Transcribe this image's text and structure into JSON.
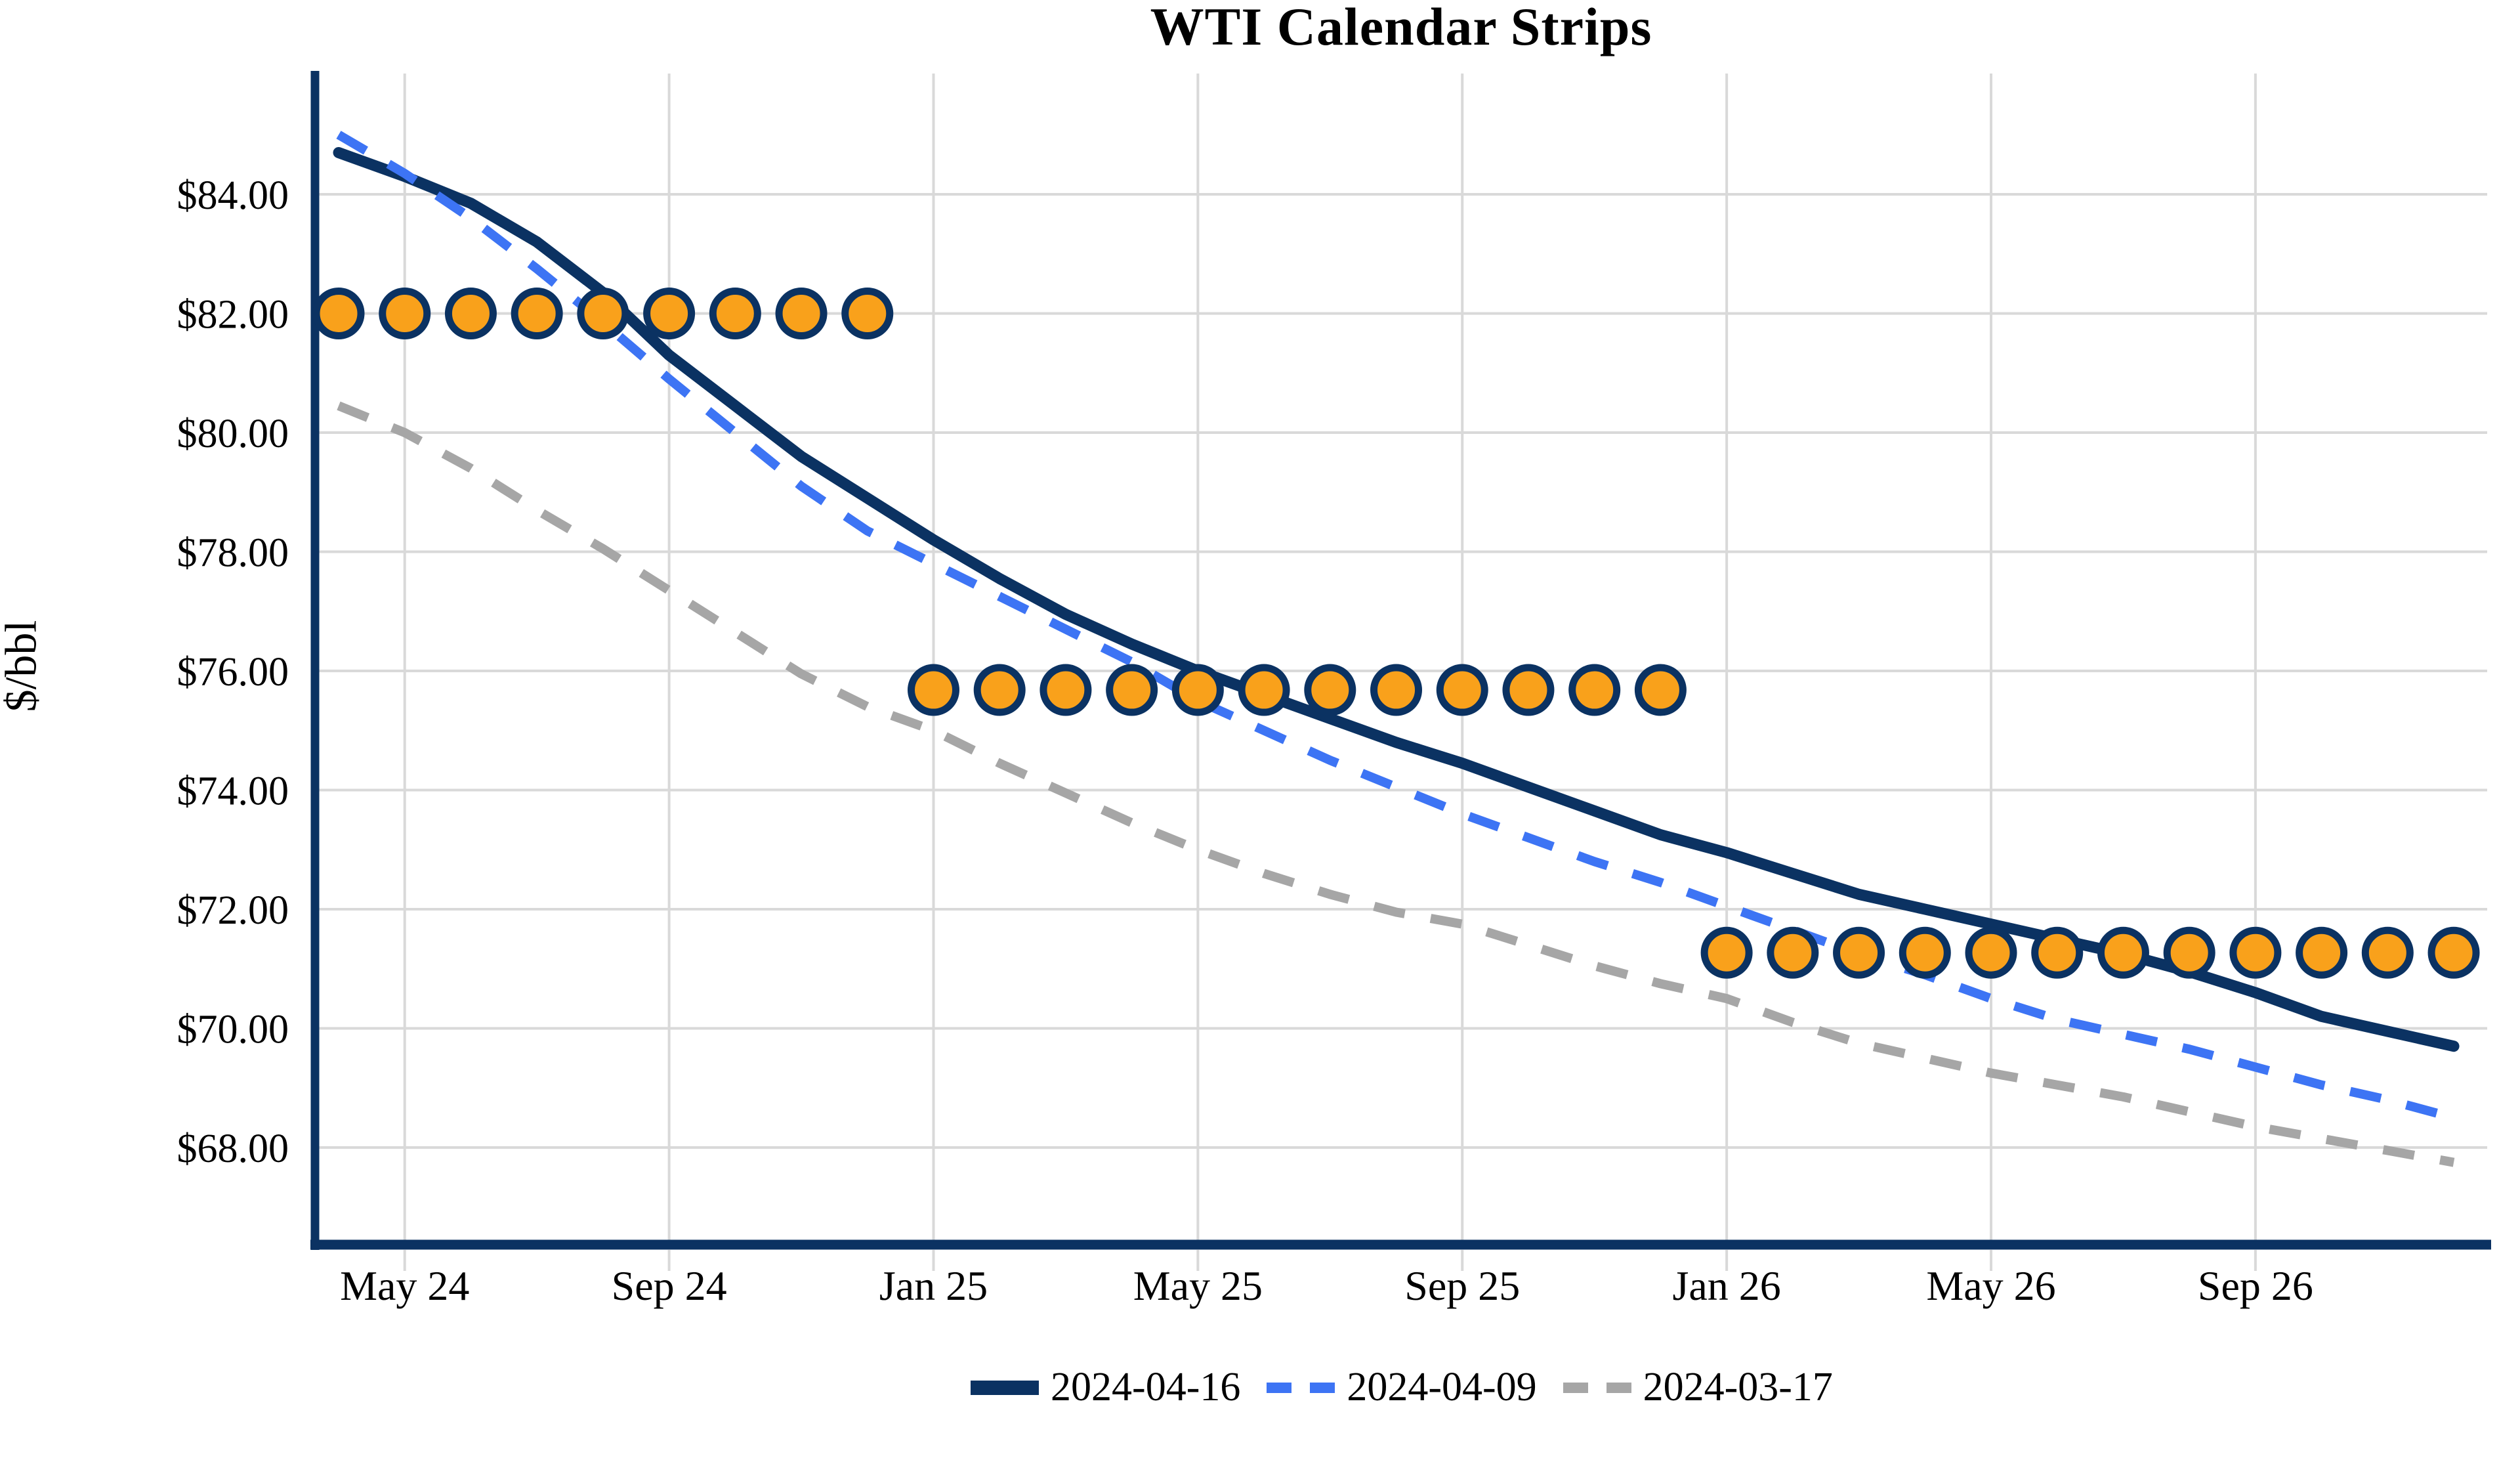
{
  "chart_data": {
    "type": "line",
    "title": "WTI Calendar Strips",
    "xlabel": "",
    "ylabel": "$/bbl",
    "grid": true,
    "legend_position": "bottom",
    "ylim": [
      66.4,
      86.0
    ],
    "background_color": "#ffffff",
    "gridline_color": "#d9d9d9",
    "axis_color": "#0B3262",
    "x": [
      "Apr 24",
      "May 24",
      "Jun 24",
      "Jul 24",
      "Aug 24",
      "Sep 24",
      "Oct 24",
      "Nov 24",
      "Dec 24",
      "Jan 25",
      "Feb 25",
      "Mar 25",
      "Apr 25",
      "May 25",
      "Jun 25",
      "Jul 25",
      "Aug 25",
      "Sep 25",
      "Oct 25",
      "Nov 25",
      "Dec 25",
      "Jan 26",
      "Feb 26",
      "Mar 26",
      "Apr 26",
      "May 26",
      "Jun 26",
      "Jul 26",
      "Aug 26",
      "Sep 26",
      "Oct 26",
      "Nov 26",
      "Dec 26"
    ],
    "x_ticks": [
      {
        "month_index": 1,
        "label": "May 24"
      },
      {
        "month_index": 5,
        "label": "Sep 24"
      },
      {
        "month_index": 9,
        "label": "Jan 25"
      },
      {
        "month_index": 13,
        "label": "May 25"
      },
      {
        "month_index": 17,
        "label": "Sep 25"
      },
      {
        "month_index": 21,
        "label": "Jan 26"
      },
      {
        "month_index": 25,
        "label": "May 26"
      },
      {
        "month_index": 29,
        "label": "Sep 26"
      }
    ],
    "y_ticks": [
      {
        "value": 84,
        "label": "$84.00"
      },
      {
        "value": 82,
        "label": "$82.00"
      },
      {
        "value": 80,
        "label": "$80.00"
      },
      {
        "value": 78,
        "label": "$78.00"
      },
      {
        "value": 76,
        "label": "$76.00"
      },
      {
        "value": 74,
        "label": "$74.00"
      },
      {
        "value": 72,
        "label": "$72.00"
      },
      {
        "value": 70,
        "label": "$70.00"
      },
      {
        "value": 68,
        "label": "$68.00"
      }
    ],
    "series": [
      {
        "name": "2024-04-16",
        "color": "#0B3262",
        "style": "solid",
        "stroke_width": 17,
        "values": [
          84.7,
          84.3,
          83.85,
          83.2,
          82.35,
          81.3,
          80.45,
          79.6,
          78.9,
          78.2,
          77.55,
          76.95,
          76.45,
          76.0,
          75.6,
          75.2,
          74.8,
          74.45,
          74.05,
          73.65,
          73.25,
          72.95,
          72.6,
          72.25,
          72.0,
          71.75,
          71.5,
          71.25,
          70.95,
          70.6,
          70.2,
          69.95,
          69.7
        ]
      },
      {
        "name": "2024-04-09",
        "color": "#3D74F4",
        "style": "dashed",
        "stroke_width": 14,
        "values": [
          85.0,
          84.35,
          83.6,
          82.75,
          81.85,
          80.9,
          80.0,
          79.1,
          78.35,
          77.8,
          77.25,
          76.7,
          76.15,
          75.5,
          75.0,
          74.5,
          74.05,
          73.6,
          73.2,
          72.8,
          72.45,
          72.05,
          71.65,
          71.25,
          70.9,
          70.5,
          70.15,
          69.9,
          69.65,
          69.35,
          69.05,
          68.8,
          68.5
        ]
      },
      {
        "name": "2024-03-17",
        "color": "#A6A6A6",
        "style": "dashed",
        "stroke_width": 14,
        "values": [
          80.45,
          80.0,
          79.4,
          78.7,
          78.05,
          77.35,
          76.65,
          75.95,
          75.4,
          75.0,
          74.45,
          73.95,
          73.45,
          73.0,
          72.6,
          72.25,
          71.95,
          71.75,
          71.4,
          71.05,
          70.75,
          70.5,
          70.1,
          69.75,
          69.5,
          69.25,
          69.05,
          68.85,
          68.6,
          68.35,
          68.15,
          67.95,
          67.75
        ]
      }
    ],
    "strip_markers": {
      "marker": "circle",
      "fill_color": "#F9A11B",
      "border_color": "#0B3262",
      "groups": [
        {
          "start_month_index": 0,
          "count": 9,
          "value": 82.0
        },
        {
          "start_month_index": 9,
          "count": 12,
          "value": 75.68
        },
        {
          "start_month_index": 21,
          "count": 12,
          "value": 71.27
        }
      ]
    }
  }
}
